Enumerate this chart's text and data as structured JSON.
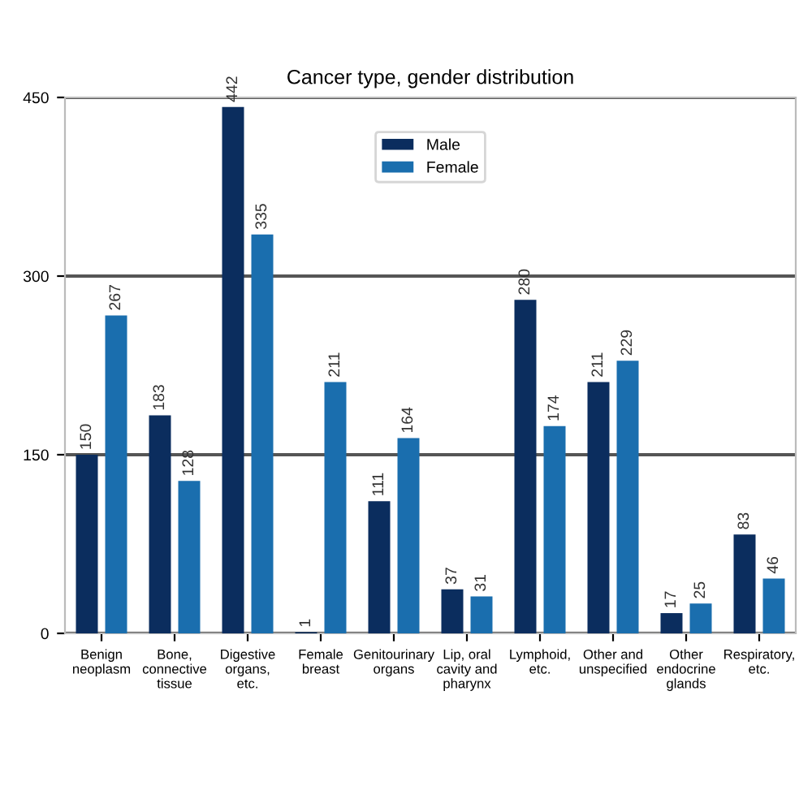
{
  "chart_data": {
    "type": "bar",
    "title": "Cancer type, gender distribution",
    "categories": [
      "Benign\nneoplasm",
      "Bone,\nconnective\ntissue",
      "Digestive\norgans,\netc.",
      "Female\nbreast",
      "Genitourinary\norgans",
      "Lip, oral\ncavity and\npharynx",
      "Lymphoid,\netc.",
      "Other and\nunspecified",
      "Other\nendocrine\nglands",
      "Respiratory,\netc."
    ],
    "series": [
      {
        "name": "Male",
        "color": "#0b2d5e",
        "values": [
          150,
          183,
          442,
          1,
          111,
          37,
          280,
          211,
          17,
          83
        ]
      },
      {
        "name": "Female",
        "color": "#1a6eae",
        "values": [
          267,
          128,
          335,
          211,
          164,
          31,
          174,
          229,
          25,
          46
        ]
      }
    ],
    "ylim": [
      0,
      450
    ],
    "yticks": [
      0,
      150,
      300,
      450
    ],
    "grid": "y",
    "legend": "top",
    "data_labels": true
  }
}
